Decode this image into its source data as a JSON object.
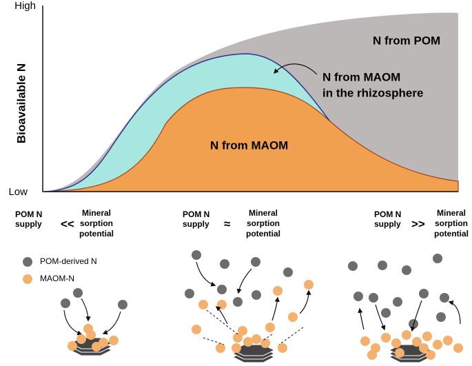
{
  "axis": {
    "y_label": "Bioavailable N",
    "y_high": "High",
    "y_low": "Low"
  },
  "regions": {
    "pom": "N from POM",
    "rhizo": [
      "N from MAOM",
      "in the rhizosphere"
    ],
    "maom": "N from MAOM"
  },
  "conditions": [
    {
      "left": [
        "POM N",
        "supply"
      ],
      "relation": "<<",
      "right": [
        "Mineral",
        "sorption",
        "potential"
      ]
    },
    {
      "left": [
        "POM N",
        "supply"
      ],
      "relation": "≈",
      "right": [
        "Mineral",
        "sorption",
        "potential"
      ]
    },
    {
      "left": [
        "POM N",
        "supply"
      ],
      "relation": ">>",
      "right": [
        "Mineral",
        "sorption",
        "potential"
      ]
    }
  ],
  "legend": [
    "POM-derived N",
    "MAOM-N"
  ]
}
